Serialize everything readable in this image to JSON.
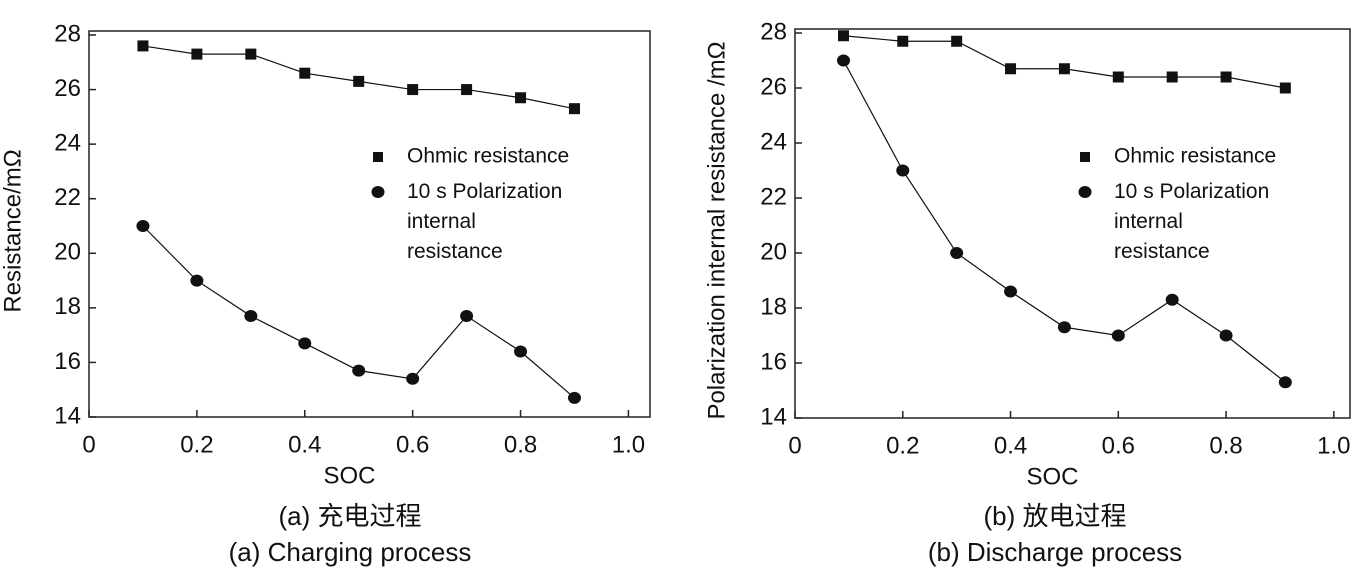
{
  "chart_data": [
    {
      "type": "line",
      "x_label": "SOC",
      "y_label": "Resistance/mΩ",
      "caption_cn": "(a) 充电过程",
      "caption_en": "(a) Charging process",
      "xlim": [
        0,
        1.04
      ],
      "ylim": [
        14,
        28
      ],
      "xticks": [
        0,
        0.2,
        0.4,
        0.6,
        0.8,
        {
          "value": 1,
          "label": "1.0"
        }
      ],
      "yticks": [
        14,
        16,
        18,
        20,
        22,
        24,
        26,
        28
      ],
      "x": [
        0.1,
        0.2,
        0.3,
        0.4,
        0.5,
        0.6,
        0.7,
        0.8,
        0.9
      ],
      "series": [
        {
          "name": "Ohmic resistance",
          "color": "#111111",
          "marker": "square",
          "values": [
            27.6,
            27.3,
            27.3,
            26.6,
            26.3,
            26.0,
            26.0,
            25.7,
            25.3
          ]
        },
        {
          "name": "10 s Polarization internal resistance",
          "color": "#111111",
          "marker": "circle",
          "values": [
            21.0,
            19.0,
            17.7,
            16.7,
            15.7,
            15.4,
            17.7,
            16.4,
            14.7
          ]
        }
      ]
    },
    {
      "type": "line",
      "x_label": "SOC",
      "y_label": "Polarization internal resistance /mΩ",
      "caption_cn": "(b) 放电过程",
      "caption_en": "(b) Discharge process",
      "xlim": [
        0,
        1.03
      ],
      "ylim": [
        14,
        28
      ],
      "xticks": [
        0,
        0.2,
        0.4,
        0.6,
        0.8,
        {
          "value": 1,
          "label": "1.0"
        }
      ],
      "yticks": [
        14,
        16,
        18,
        20,
        22,
        24,
        26,
        28
      ],
      "x": [
        0.09,
        0.2,
        0.3,
        0.4,
        0.5,
        0.6,
        0.7,
        0.8,
        0.91
      ],
      "series": [
        {
          "name": "Ohmic resistance",
          "color": "#111111",
          "marker": "square",
          "values": [
            27.9,
            27.7,
            27.7,
            26.7,
            26.7,
            26.4,
            26.4,
            26.4,
            26.0
          ]
        },
        {
          "name": "10 s Polarization internal resistance",
          "color": "#111111",
          "marker": "circle",
          "values": [
            27.0,
            23.0,
            20.0,
            18.6,
            17.3,
            17.0,
            18.3,
            17.0,
            15.3
          ]
        }
      ]
    }
  ]
}
